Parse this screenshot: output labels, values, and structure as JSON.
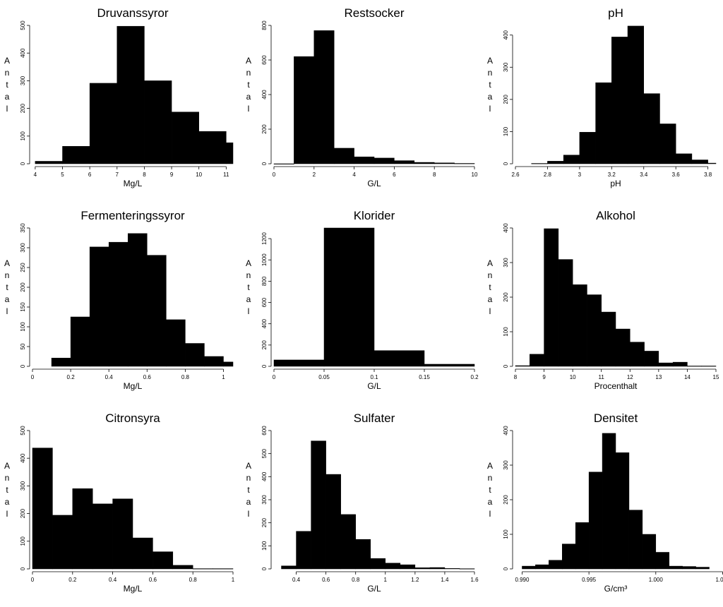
{
  "chart_data": [
    {
      "type": "bar",
      "title": "Druvanssyror",
      "xlabel": "Mg/L",
      "ylabel": "Antal",
      "xlim": [
        3.9,
        11.25
      ],
      "ylim": [
        0,
        500
      ],
      "xticks": [
        4,
        5,
        6,
        7,
        8,
        9,
        10,
        11
      ],
      "yticks": [
        0,
        100,
        200,
        300,
        400,
        500
      ],
      "bins": [
        [
          4,
          5
        ],
        [
          5,
          6
        ],
        [
          6,
          7
        ],
        [
          7,
          8
        ],
        [
          8,
          9
        ],
        [
          9,
          10
        ],
        [
          10,
          11
        ],
        [
          11,
          11.25
        ]
      ],
      "values": [
        9,
        63,
        291,
        497,
        300,
        187,
        117,
        76
      ]
    },
    {
      "type": "bar",
      "title": "Restsocker",
      "xlabel": "G/L",
      "ylabel": "Antal",
      "xlim": [
        0,
        10
      ],
      "ylim": [
        0,
        800
      ],
      "xticks": [
        0,
        2,
        4,
        6,
        8,
        10
      ],
      "yticks": [
        0,
        200,
        400,
        600,
        800
      ],
      "bins": [
        [
          0,
          1
        ],
        [
          1,
          2
        ],
        [
          2,
          3
        ],
        [
          3,
          4
        ],
        [
          4,
          5
        ],
        [
          5,
          6
        ],
        [
          6,
          7
        ],
        [
          7,
          8
        ],
        [
          8,
          9
        ],
        [
          9,
          10
        ]
      ],
      "values": [
        0,
        620,
        770,
        90,
        40,
        33,
        18,
        8,
        5,
        2
      ]
    },
    {
      "type": "bar",
      "title": "pH",
      "xlabel": "pH",
      "ylabel": "Antal",
      "xlim": [
        2.6,
        3.85
      ],
      "ylim": [
        0,
        430
      ],
      "xticks": [
        2.6,
        2.8,
        3.0,
        3.2,
        3.4,
        3.6,
        3.8
      ],
      "yticks": [
        0,
        100,
        200,
        300,
        400
      ],
      "bins": [
        [
          2.7,
          2.8
        ],
        [
          2.8,
          2.9
        ],
        [
          2.9,
          3.0
        ],
        [
          3.0,
          3.1
        ],
        [
          3.1,
          3.2
        ],
        [
          3.2,
          3.3
        ],
        [
          3.3,
          3.4
        ],
        [
          3.4,
          3.5
        ],
        [
          3.5,
          3.6
        ],
        [
          3.6,
          3.7
        ],
        [
          3.7,
          3.8
        ],
        [
          3.8,
          3.85
        ]
      ],
      "values": [
        1,
        8,
        27,
        98,
        252,
        394,
        428,
        218,
        124,
        31,
        12,
        2
      ]
    },
    {
      "type": "bar",
      "title": "Fermenteringssyror",
      "xlabel": "Mg/L",
      "ylabel": "Antal",
      "xlim": [
        0,
        1.05
      ],
      "ylim": [
        0,
        350
      ],
      "xticks": [
        0.0,
        0.2,
        0.4,
        0.6,
        0.8,
        1.0
      ],
      "yticks": [
        0,
        50,
        100,
        150,
        200,
        250,
        300,
        350
      ],
      "bins": [
        [
          0.1,
          0.2
        ],
        [
          0.2,
          0.3
        ],
        [
          0.3,
          0.4
        ],
        [
          0.4,
          0.5
        ],
        [
          0.5,
          0.6
        ],
        [
          0.6,
          0.7
        ],
        [
          0.7,
          0.8
        ],
        [
          0.8,
          0.9
        ],
        [
          0.9,
          1.0
        ],
        [
          1.0,
          1.05
        ]
      ],
      "values": [
        21,
        125,
        302,
        314,
        336,
        281,
        118,
        58,
        25,
        11
      ]
    },
    {
      "type": "bar",
      "title": "Klorider",
      "xlabel": "G/L",
      "ylabel": "Antal",
      "xlim": [
        0,
        0.2
      ],
      "ylim": [
        0,
        1300
      ],
      "xticks": [
        0.0,
        0.05,
        0.1,
        0.15,
        0.2
      ],
      "yticks": [
        0,
        200,
        400,
        600,
        800,
        1000,
        1200
      ],
      "bins": [
        [
          0,
          0.05
        ],
        [
          0.05,
          0.1
        ],
        [
          0.1,
          0.15
        ],
        [
          0.15,
          0.2
        ]
      ],
      "values": [
        60,
        1300,
        148,
        20
      ]
    },
    {
      "type": "bar",
      "title": "Alkohol",
      "xlabel": "Procenthalt",
      "ylabel": "Antal",
      "xlim": [
        8,
        15
      ],
      "ylim": [
        0,
        400
      ],
      "xticks": [
        8,
        9,
        10,
        11,
        12,
        13,
        14,
        15
      ],
      "yticks": [
        0,
        100,
        200,
        300,
        400
      ],
      "bins": [
        [
          8,
          8.5
        ],
        [
          8.5,
          9
        ],
        [
          9,
          9.5
        ],
        [
          9.5,
          10
        ],
        [
          10,
          10.5
        ],
        [
          10.5,
          11
        ],
        [
          11,
          11.5
        ],
        [
          11.5,
          12
        ],
        [
          12,
          12.5
        ],
        [
          12.5,
          13
        ],
        [
          13,
          13.5
        ],
        [
          13.5,
          14
        ],
        [
          14,
          14.5
        ],
        [
          14.5,
          15
        ]
      ],
      "values": [
        2,
        35,
        398,
        309,
        236,
        207,
        157,
        108,
        70,
        44,
        10,
        12,
        1,
        1
      ]
    },
    {
      "type": "bar",
      "title": "Citronsyra",
      "xlabel": "Mg/L",
      "ylabel": "Antal",
      "xlim": [
        0,
        1.0
      ],
      "ylim": [
        0,
        500
      ],
      "xticks": [
        0.0,
        0.2,
        0.4,
        0.6,
        0.8,
        1.0
      ],
      "yticks": [
        0,
        100,
        200,
        300,
        400,
        500
      ],
      "bins": [
        [
          0,
          0.1
        ],
        [
          0.1,
          0.2
        ],
        [
          0.2,
          0.3
        ],
        [
          0.3,
          0.4
        ],
        [
          0.4,
          0.5
        ],
        [
          0.5,
          0.6
        ],
        [
          0.6,
          0.7
        ],
        [
          0.7,
          0.8
        ],
        [
          0.8,
          0.9
        ],
        [
          0.9,
          1.0
        ]
      ],
      "values": [
        437,
        194,
        290,
        235,
        253,
        112,
        62,
        13,
        1,
        1
      ]
    },
    {
      "type": "bar",
      "title": "Sulfater",
      "xlabel": "G/L",
      "ylabel": "Antal",
      "xlim": [
        0.25,
        1.6
      ],
      "ylim": [
        0,
        600
      ],
      "xticks": [
        0.4,
        0.6,
        0.8,
        1.0,
        1.2,
        1.4,
        1.6
      ],
      "yticks": [
        0,
        100,
        200,
        300,
        400,
        500,
        600
      ],
      "bins": [
        [
          0.3,
          0.4
        ],
        [
          0.4,
          0.5
        ],
        [
          0.5,
          0.6
        ],
        [
          0.6,
          0.7
        ],
        [
          0.7,
          0.8
        ],
        [
          0.8,
          0.9
        ],
        [
          0.9,
          1.0
        ],
        [
          1.0,
          1.1
        ],
        [
          1.1,
          1.2
        ],
        [
          1.2,
          1.3
        ],
        [
          1.3,
          1.4
        ],
        [
          1.4,
          1.5
        ],
        [
          1.5,
          1.6
        ]
      ],
      "values": [
        13,
        163,
        555,
        410,
        236,
        128,
        45,
        25,
        18,
        5,
        6,
        2,
        1
      ]
    },
    {
      "type": "bar",
      "title": "Densitet",
      "xlabel": "G/cm³",
      "ylabel": "Antal",
      "xlim": [
        0.9895,
        1.0045
      ],
      "ylim": [
        0,
        400
      ],
      "xticks": [
        0.99,
        0.995,
        1.0,
        1.005
      ],
      "xticklabels": [
        "0.990",
        "0.995",
        "1.000",
        "1.005"
      ],
      "yticks": [
        0,
        100,
        200,
        300,
        400
      ],
      "bins": [
        [
          0.99,
          0.991
        ],
        [
          0.991,
          0.992
        ],
        [
          0.992,
          0.993
        ],
        [
          0.993,
          0.994
        ],
        [
          0.994,
          0.995
        ],
        [
          0.995,
          0.996
        ],
        [
          0.996,
          0.997
        ],
        [
          0.997,
          0.998
        ],
        [
          0.998,
          0.999
        ],
        [
          0.999,
          1.0
        ],
        [
          1.0,
          1.001
        ],
        [
          1.001,
          1.002
        ],
        [
          1.002,
          1.003
        ],
        [
          1.003,
          1.004
        ]
      ],
      "values": [
        8,
        12,
        25,
        72,
        134,
        280,
        392,
        336,
        170,
        100,
        48,
        8,
        7,
        5
      ]
    }
  ]
}
